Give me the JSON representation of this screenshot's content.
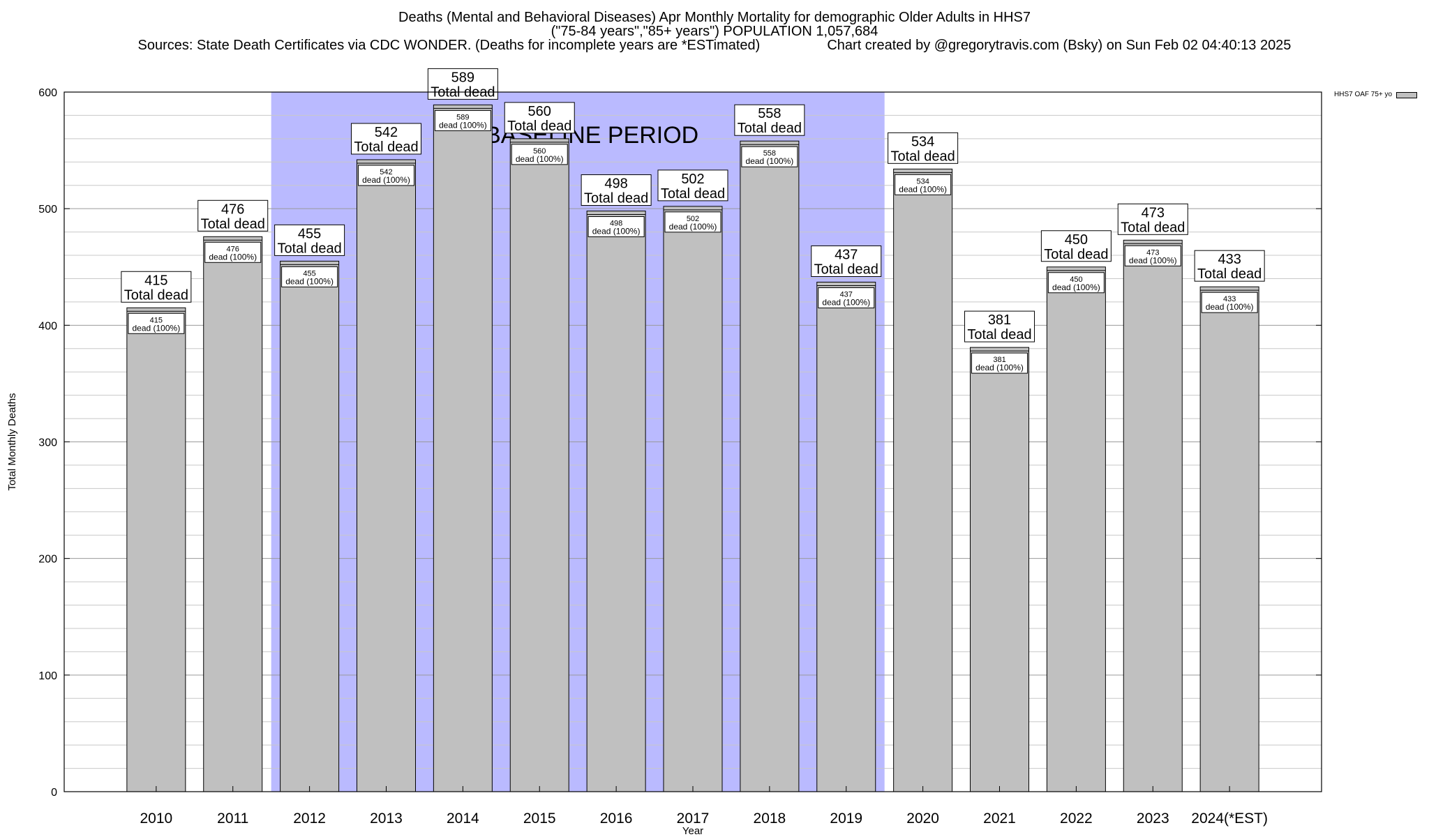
{
  "chart_data": {
    "type": "bar",
    "title": "Deaths (Mental and Behavioral Diseases) Apr Monthly Mortality for demographic Older Adults in HHS7",
    "subtitle": "(\"75-84 years\",\"85+ years\") POPULATION 1,057,684",
    "sources": "Sources: State Death Certificates via CDC WONDER. (Deaths for incomplete years are *ESTimated)",
    "credit": "Chart created by @gregorytravis.com (Bsky) on Sun Feb 02 04:40:13 2025",
    "xlabel": "Year",
    "ylabel": "Total Monthly Deaths",
    "ylim": [
      0,
      600
    ],
    "yticks": [
      0,
      100,
      200,
      300,
      400,
      500,
      600
    ],
    "categories": [
      "2010",
      "2011",
      "2012",
      "2013",
      "2014",
      "2015",
      "2016",
      "2017",
      "2018",
      "2019",
      "2020",
      "2021",
      "2022",
      "2023",
      "2024(*EST)"
    ],
    "series": [
      {
        "name": "HHS7 OAF 75+ yo",
        "color": "#c0c0c0",
        "values": [
          415,
          476,
          455,
          542,
          589,
          560,
          498,
          502,
          558,
          437,
          534,
          381,
          450,
          473,
          433
        ]
      }
    ],
    "top_label_suffix": "Total dead",
    "inner_label_suffix": "dead (100%)",
    "baseline": {
      "label": "BASELINE PERIOD",
      "from": "2012",
      "to": "2019",
      "color": "#babaff"
    },
    "grid": true,
    "legend_position": "top-right"
  }
}
